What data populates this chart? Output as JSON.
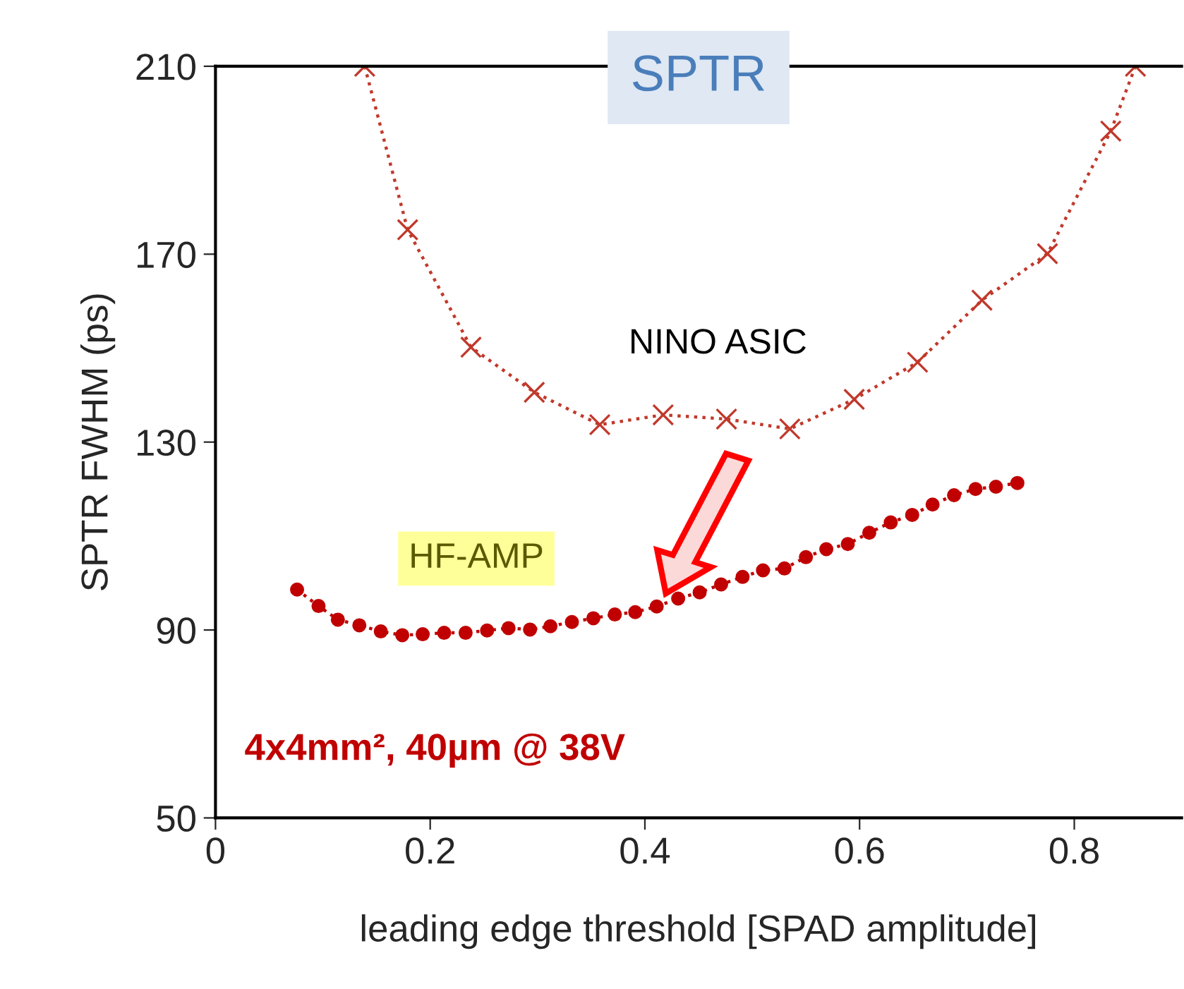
{
  "chart_data": {
    "type": "line",
    "title": "SPTR",
    "xlabel": "leading edge threshold [SPAD amplitude]",
    "ylabel": "SPTR FWHM (ps)",
    "xlim": [
      0,
      0.9
    ],
    "ylim": [
      50,
      210
    ],
    "xticks": [
      0,
      0.2,
      0.4,
      0.6,
      0.8
    ],
    "yticks": [
      50,
      90,
      130,
      170,
      210
    ],
    "grid": false,
    "line_style": "dotted",
    "series": [
      {
        "name": "NINO ASIC",
        "color": "#c0392b",
        "marker": "cross",
        "x": [
          0.139,
          0.179,
          0.238,
          0.297,
          0.358,
          0.417,
          0.476,
          0.535,
          0.595,
          0.654,
          0.714,
          0.775,
          0.834,
          0.857
        ],
        "values": [
          210,
          175.2,
          150.2,
          140.6,
          133.7,
          135.8,
          134.9,
          132.8,
          139.1,
          147.0,
          160.2,
          170.1,
          196.2,
          210
        ]
      },
      {
        "name": "HF-AMP",
        "color": "#c00000",
        "marker": "circle",
        "x": [
          0.076,
          0.096,
          0.114,
          0.134,
          0.154,
          0.174,
          0.193,
          0.213,
          0.233,
          0.253,
          0.273,
          0.293,
          0.312,
          0.332,
          0.352,
          0.372,
          0.391,
          0.411,
          0.431,
          0.451,
          0.471,
          0.491,
          0.51,
          0.53,
          0.55,
          0.569,
          0.589,
          0.609,
          0.629,
          0.649,
          0.668,
          0.688,
          0.708,
          0.727,
          0.747
        ],
        "values": [
          98.6,
          95.1,
          92.2,
          91.0,
          89.7,
          88.9,
          89.1,
          89.4,
          89.4,
          89.9,
          90.4,
          90.1,
          90.8,
          91.7,
          92.5,
          93.3,
          93.8,
          95.0,
          96.7,
          98.0,
          99.7,
          101.3,
          102.7,
          103.1,
          105.5,
          107.2,
          108.3,
          110.7,
          112.9,
          114.5,
          116.7,
          118.7,
          120.0,
          120.5,
          121.3
        ]
      }
    ],
    "annotations": [
      "4x4mm², 40µm @ 38V"
    ]
  }
}
